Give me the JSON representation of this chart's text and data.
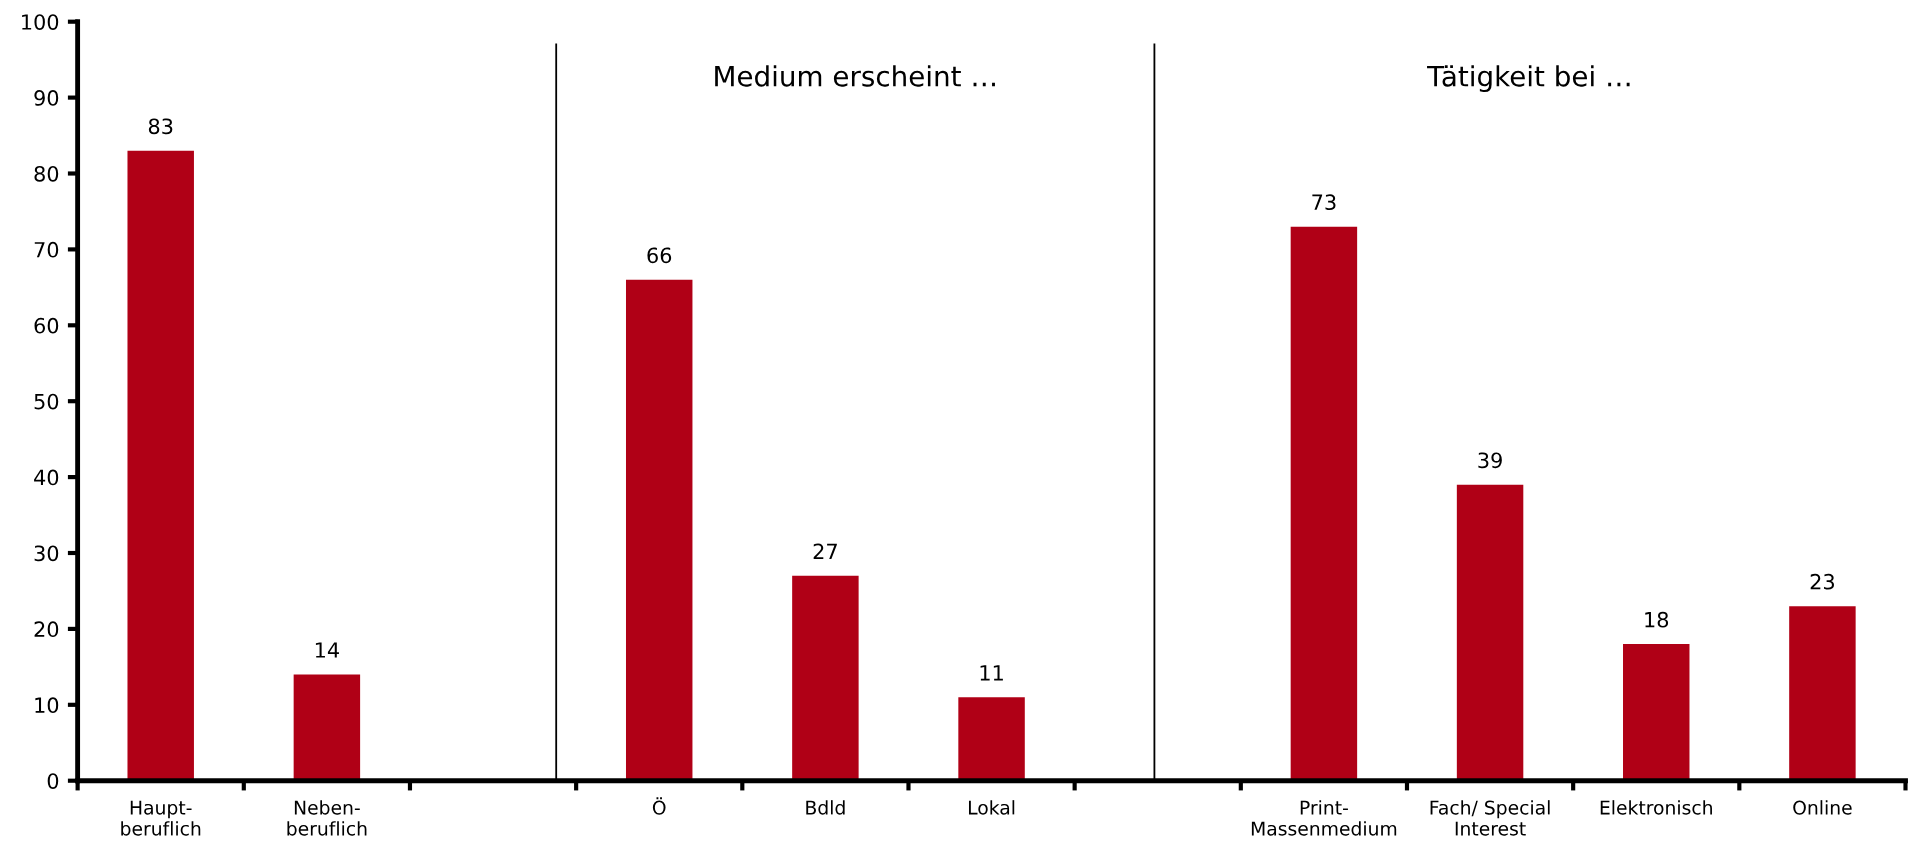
{
  "chart_data": {
    "type": "bar",
    "categories": [
      "Haupt-\nberuflich",
      "Neben-\nberuflich",
      null,
      "Ö",
      "Bdld",
      "Lokal",
      null,
      "Print-\nMassenmedium",
      "Fach/ Special\nInterest",
      "Elektronisch",
      "Online"
    ],
    "values": [
      83,
      14,
      null,
      66,
      27,
      11,
      null,
      73,
      39,
      18,
      23
    ],
    "color": "#b00016",
    "ylim": [
      0,
      100
    ],
    "yticks": [
      0,
      10,
      20,
      30,
      40,
      50,
      60,
      70,
      80,
      90,
      100
    ],
    "data_labels": true,
    "annotations": [
      "Medium erscheint …",
      "Tätigkeit bei …"
    ]
  }
}
